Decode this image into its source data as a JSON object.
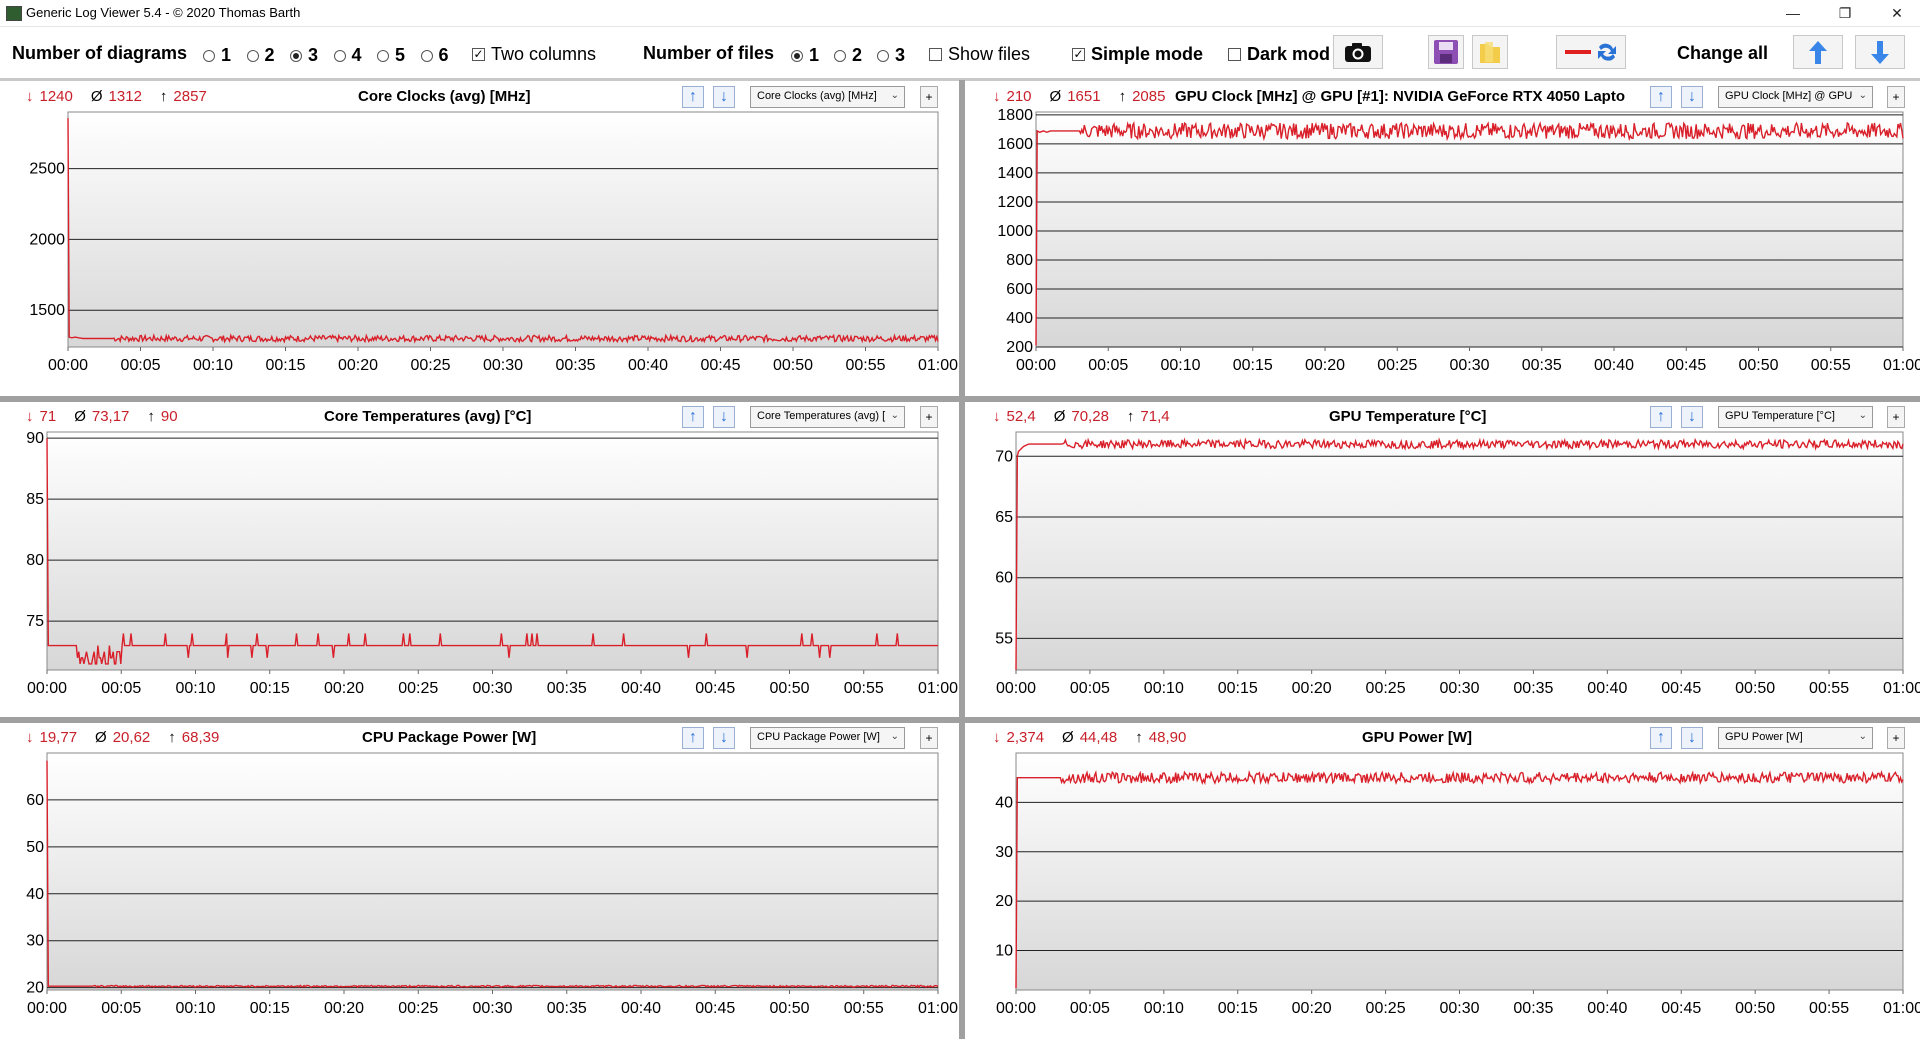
{
  "window": {
    "title": "Generic Log Viewer 5.4 - © 2020 Thomas Barth",
    "minimize_glyph": "—",
    "restore_glyph": "❐",
    "close_glyph": "✕"
  },
  "toolbar": {
    "diagrams_label": "Number of diagrams",
    "diagram_options": [
      "1",
      "2",
      "3",
      "4",
      "5",
      "6"
    ],
    "diagram_selected": "3",
    "two_columns_label": "Two columns",
    "two_columns_checked": true,
    "files_label": "Number of files",
    "file_options": [
      "1",
      "2",
      "3"
    ],
    "file_selected": "1",
    "show_files_label": "Show files",
    "show_files_checked": false,
    "simple_mode_label": "Simple mode",
    "simple_mode_checked": true,
    "dark_mode_label": "Dark mod",
    "dark_mode_checked": false,
    "change_all_label": "Change all",
    "icons": [
      "camera-icon",
      "save-icon",
      "folder-icon",
      "swap-color-icon",
      "arrow-up-icon",
      "arrow-down-icon"
    ]
  },
  "panels": [
    {
      "id": "core-clocks",
      "min": "1240",
      "avg": "1312",
      "max": "2857",
      "title": "Core Clocks (avg) [MHz]",
      "combo": "Core Clocks (avg) [MHz]",
      "yticks": [
        "2500",
        "2000",
        "1500"
      ],
      "xticks": [
        "00:00",
        "00:05",
        "00:10",
        "00:15",
        "00:20",
        "00:25",
        "00:30",
        "00:35",
        "00:40",
        "00:45",
        "00:50",
        "00:55",
        "01:00"
      ]
    },
    {
      "id": "gpu-clock",
      "min": "210",
      "avg": "1651",
      "max": "2085",
      "title": "GPU Clock [MHz] @ GPU [#1]: NVIDIA GeForce RTX 4050 Lapto",
      "combo": "GPU Clock [MHz] @ GPU",
      "yticks": [
        "1800",
        "1600",
        "1400",
        "1200",
        "1000",
        "800",
        "600",
        "400",
        "200"
      ],
      "xticks": [
        "00:00",
        "00:05",
        "00:10",
        "00:15",
        "00:20",
        "00:25",
        "00:30",
        "00:35",
        "00:40",
        "00:45",
        "00:50",
        "00:55",
        "01:00"
      ]
    },
    {
      "id": "core-temps",
      "min": "71",
      "avg": "73,17",
      "max": "90",
      "title": "Core Temperatures (avg) [°C]",
      "combo": "Core Temperatures (avg) [",
      "yticks": [
        "90",
        "85",
        "80",
        "75"
      ],
      "xticks": [
        "00:00",
        "00:05",
        "00:10",
        "00:15",
        "00:20",
        "00:25",
        "00:30",
        "00:35",
        "00:40",
        "00:45",
        "00:50",
        "00:55",
        "01:00"
      ]
    },
    {
      "id": "gpu-temp",
      "min": "52,4",
      "avg": "70,28",
      "max": "71,4",
      "title": "GPU Temperature [°C]",
      "combo": "GPU Temperature [°C]",
      "yticks": [
        "70",
        "65",
        "60",
        "55"
      ],
      "xticks": [
        "00:00",
        "00:05",
        "00:10",
        "00:15",
        "00:20",
        "00:25",
        "00:30",
        "00:35",
        "00:40",
        "00:45",
        "00:50",
        "00:55",
        "01:00"
      ]
    },
    {
      "id": "cpu-power",
      "min": "19,77",
      "avg": "20,62",
      "max": "68,39",
      "title": "CPU Package Power [W]",
      "combo": "CPU Package Power [W]",
      "yticks": [
        "60",
        "50",
        "40",
        "30",
        "20"
      ],
      "xticks": [
        "00:00",
        "00:05",
        "00:10",
        "00:15",
        "00:20",
        "00:25",
        "00:30",
        "00:35",
        "00:40",
        "00:45",
        "00:50",
        "00:55",
        "01:00"
      ]
    },
    {
      "id": "gpu-power",
      "min": "2,374",
      "avg": "44,48",
      "max": "48,90",
      "title": "GPU Power [W]",
      "combo": "GPU Power [W]",
      "yticks": [
        "40",
        "30",
        "20",
        "10"
      ],
      "xticks": [
        "00:00",
        "00:05",
        "00:10",
        "00:15",
        "00:20",
        "00:25",
        "00:30",
        "00:35",
        "00:40",
        "00:45",
        "00:50",
        "00:55",
        "01:00"
      ]
    }
  ],
  "colors": {
    "line": "#d9202a",
    "stat": "#c8202a",
    "plot_top": "#ffffff",
    "plot_bottom": "#d7d7d7",
    "arrow": "#2a73d6"
  },
  "chart_data": [
    {
      "type": "line",
      "title": "Core Clocks (avg) [MHz]",
      "x_unit": "mm:ss",
      "ylim": [
        1240,
        2900
      ],
      "series": [
        {
          "x": [
            "00:00",
            "00:00.3",
            "00:00.7",
            "00:01",
            "00:01.5",
            "00:02",
            "00:02.5",
            "00:05",
            "00:15",
            "00:30",
            "00:45",
            "01:00"
          ],
          "values": [
            2857,
            2500,
            1900,
            1800,
            1650,
            1450,
            1300,
            1310,
            1305,
            1310,
            1305,
            1300
          ]
        }
      ]
    },
    {
      "type": "line",
      "title": "GPU Clock [MHz] @ GPU [#1]: NVIDIA GeForce RTX 4050 Lapto",
      "x_unit": "mm:ss",
      "ylim": [
        200,
        1820
      ],
      "series": [
        {
          "x": [
            "00:00",
            "00:00.1",
            "00:00.5",
            "00:01",
            "00:02",
            "00:03",
            "00:05",
            "00:15",
            "00:30",
            "00:45",
            "01:00"
          ],
          "values": [
            210,
            1450,
            1550,
            1580,
            1650,
            1700,
            1690,
            1680,
            1690,
            1680,
            1690
          ]
        }
      ]
    },
    {
      "type": "line",
      "title": "Core Temperatures (avg) [°C]",
      "x_unit": "mm:ss",
      "ylim": [
        71,
        90.5
      ],
      "series": [
        {
          "x": [
            "00:00",
            "00:00.3",
            "00:00.7",
            "00:01",
            "00:01.5",
            "00:02",
            "00:02.3",
            "00:05",
            "00:15",
            "00:30",
            "00:45",
            "01:00"
          ],
          "values": [
            90,
            89,
            82,
            80,
            77,
            74,
            72,
            73,
            73,
            73,
            73,
            73
          ]
        }
      ]
    },
    {
      "type": "line",
      "title": "GPU Temperature [°C]",
      "x_unit": "mm:ss",
      "ylim": [
        52.4,
        72
      ],
      "series": [
        {
          "x": [
            "00:00",
            "00:00.2",
            "00:01",
            "00:02",
            "00:05",
            "00:10",
            "00:20",
            "00:30",
            "00:40",
            "00:50",
            "01:00"
          ],
          "values": [
            52.4,
            66,
            67,
            69,
            70,
            70.4,
            70.6,
            70.8,
            70.9,
            71,
            71
          ]
        }
      ]
    },
    {
      "type": "line",
      "title": "CPU Package Power [W]",
      "x_unit": "mm:ss",
      "ylim": [
        19.77,
        70
      ],
      "series": [
        {
          "x": [
            "00:00",
            "00:00.3",
            "00:00.7",
            "00:01.5",
            "00:02",
            "00:02.4",
            "00:05",
            "00:15",
            "00:30",
            "00:45",
            "01:00"
          ],
          "values": [
            68.39,
            60,
            38,
            35,
            28,
            20.3,
            20.3,
            20.3,
            20.3,
            20.3,
            20.3
          ]
        }
      ]
    },
    {
      "type": "line",
      "title": "GPU Power [W]",
      "x_unit": "mm:ss",
      "ylim": [
        2.374,
        50
      ],
      "series": [
        {
          "x": [
            "00:00",
            "00:00.1",
            "00:00.5",
            "00:01.5",
            "00:02",
            "00:02.5",
            "00:05",
            "00:15",
            "00:30",
            "00:45",
            "01:00"
          ],
          "values": [
            2.374,
            37,
            35,
            36,
            40,
            45,
            45,
            45,
            45,
            45,
            45
          ]
        }
      ]
    }
  ]
}
